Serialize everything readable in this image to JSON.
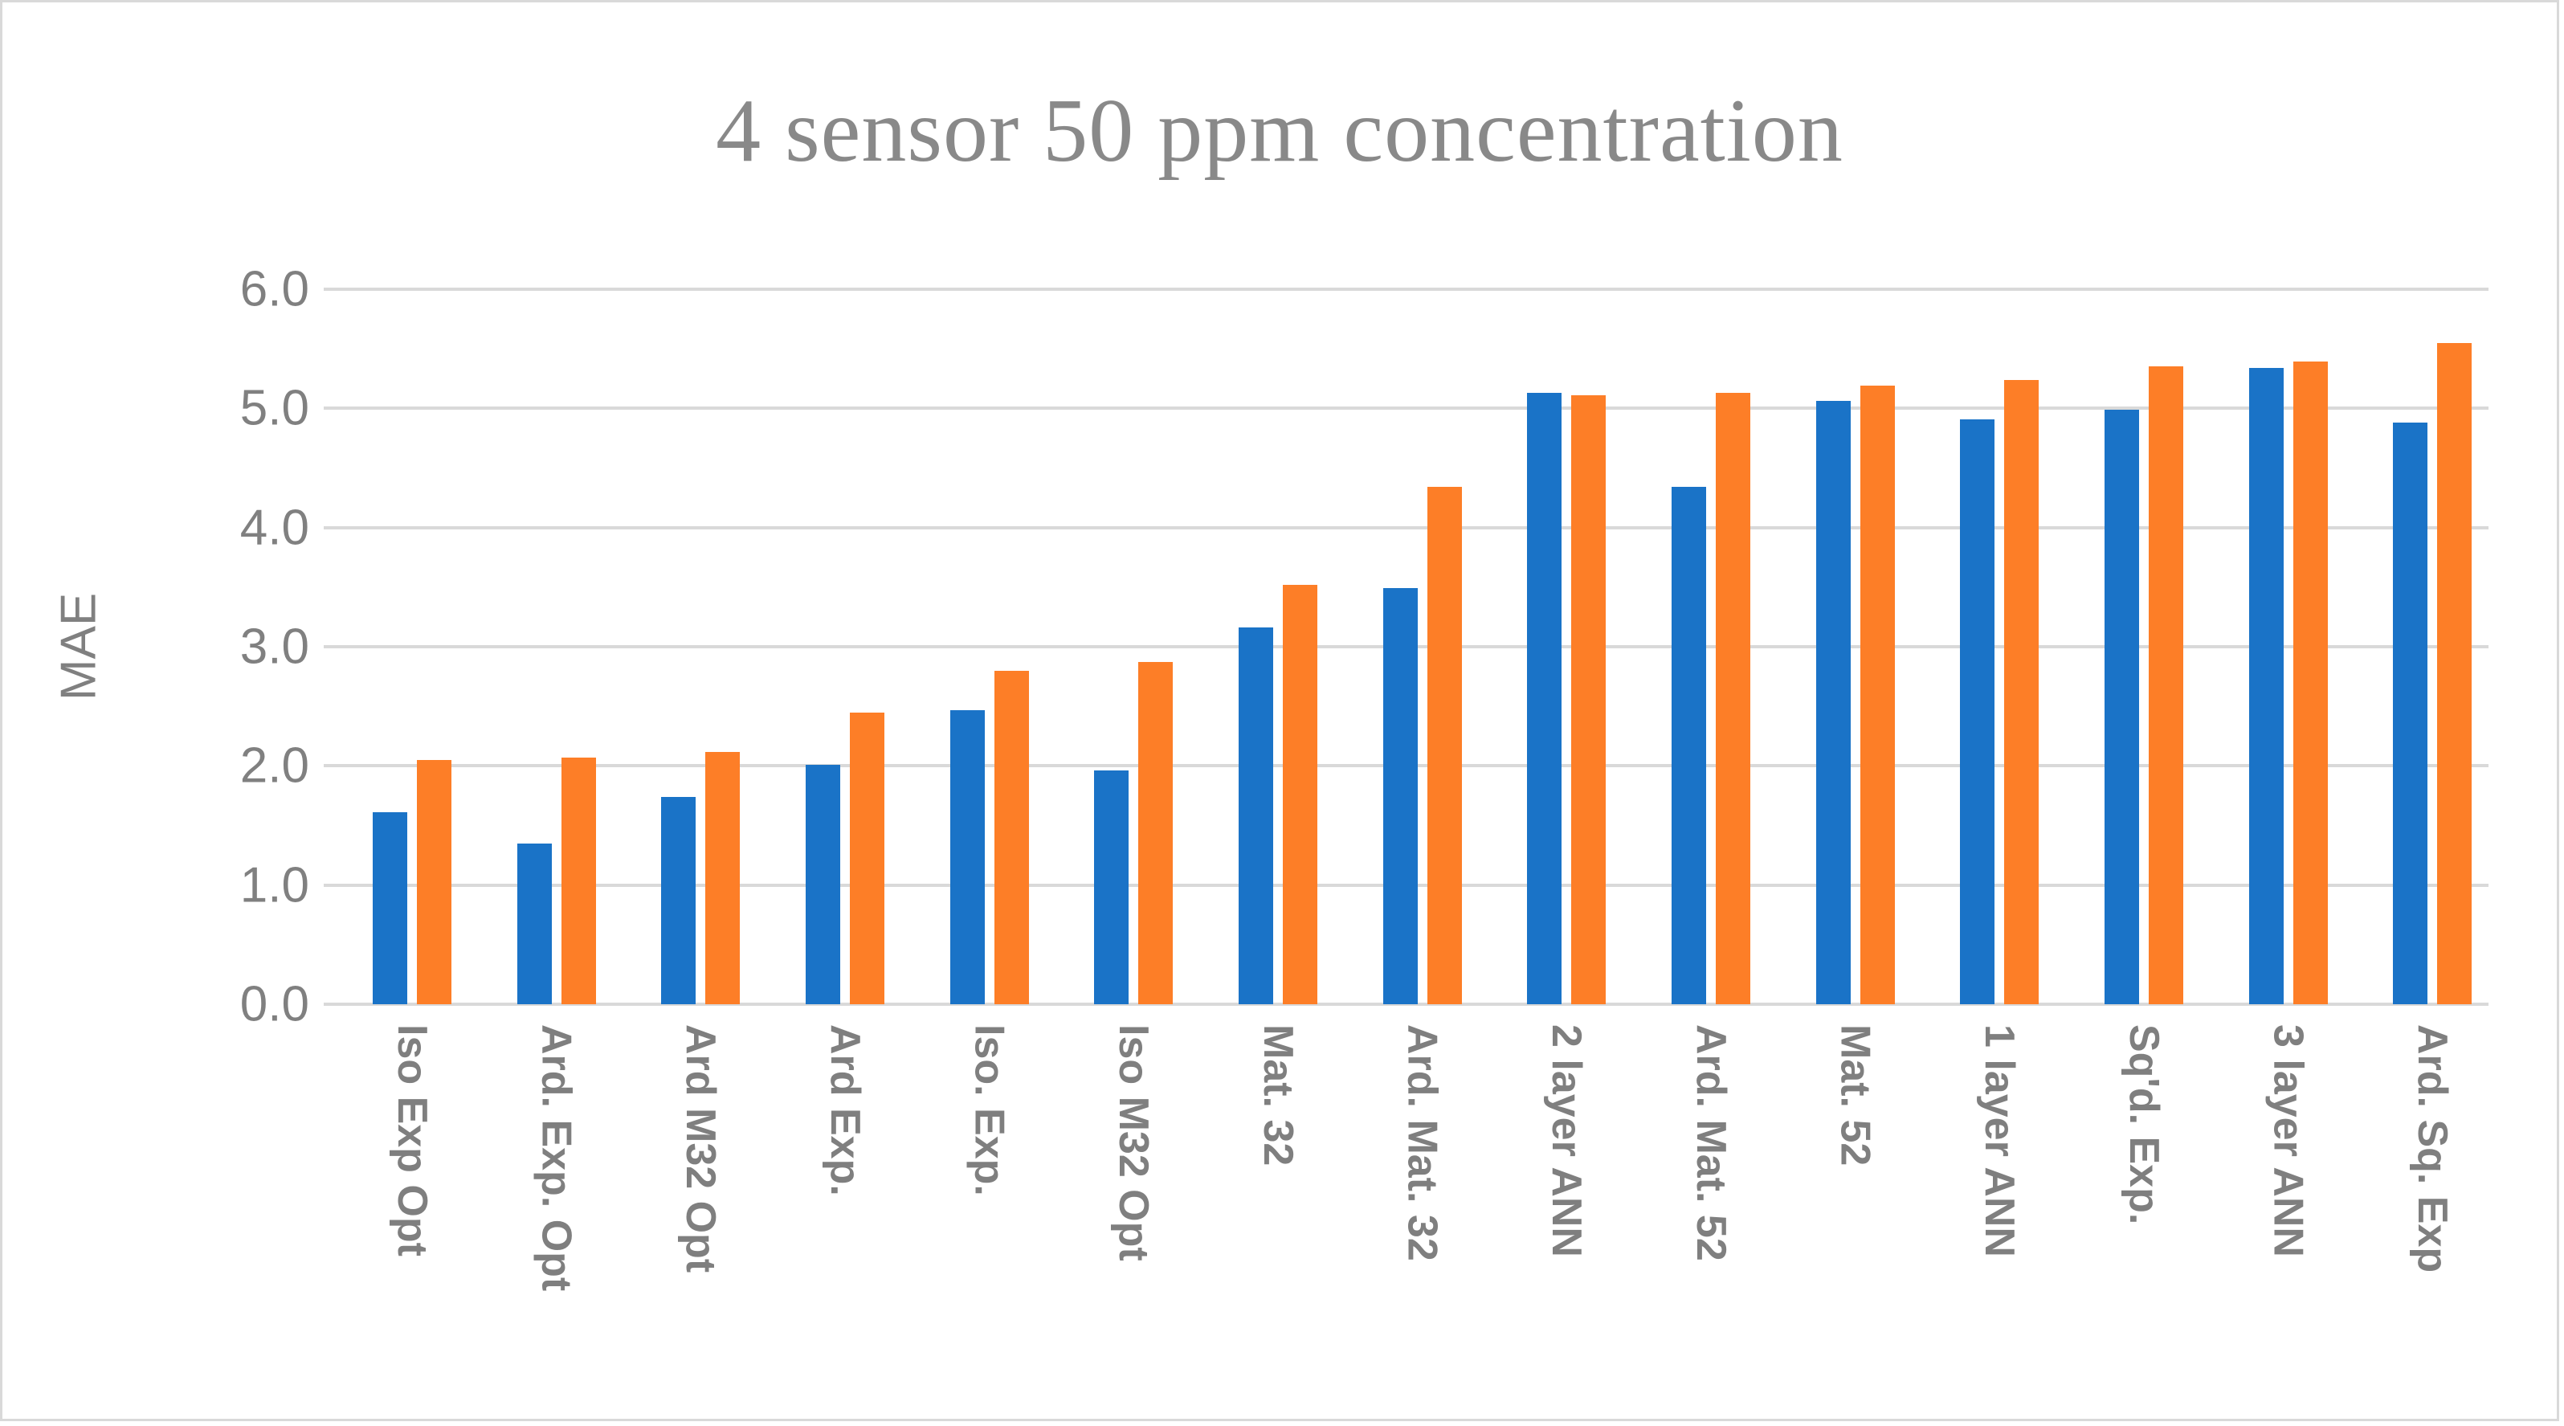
{
  "figure": {
    "background": "#FFFFFF",
    "border_color": "#D9D9D9",
    "text_color": "#808080",
    "gridline_color": "#D9D9D9"
  },
  "chart_data": {
    "type": "bar",
    "title": "4 sensor 50 ppm concentration",
    "xlabel": "",
    "ylabel": "MAE",
    "ylim": [
      0,
      6
    ],
    "ytick_step": 1.0,
    "ytick_labels": [
      "6.0",
      "5.0",
      "4.0",
      "3.0",
      "2.0",
      "1.0",
      "0.0"
    ],
    "grid": true,
    "legend": "none",
    "categories": [
      "Iso Exp Opt",
      "Ard. Exp. Opt",
      "Ard M32 Opt",
      "Ard Exp.",
      "Iso. Exp.",
      "Iso M32 Opt",
      "Mat. 32",
      "Ard. Mat. 32",
      "2 layer ANN",
      "Ard. Mat. 52",
      "Mat. 52",
      "1 layer ANN",
      "Sq'd. Exp.",
      "3 layer ANN",
      "Ard. Sq. Exp"
    ],
    "series": [
      {
        "name": "blue",
        "color": "#1A73C7",
        "values": [
          1.61,
          1.35,
          1.74,
          2.01,
          2.47,
          1.96,
          3.16,
          3.49,
          5.13,
          4.34,
          5.06,
          4.91,
          4.99,
          5.34,
          4.88
        ]
      },
      {
        "name": "orange",
        "color": "#FD7E27",
        "values": [
          2.05,
          2.07,
          2.12,
          2.45,
          2.8,
          2.87,
          3.52,
          4.34,
          5.11,
          5.13,
          5.19,
          5.24,
          5.35,
          5.39,
          5.55
        ]
      }
    ]
  }
}
